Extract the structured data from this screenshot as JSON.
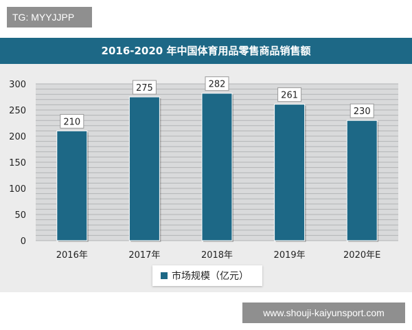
{
  "tag": "TG: MYYJJPP",
  "watermark": "www.shouji-kaiyunsport.com",
  "colors": {
    "bar": "#1d6886",
    "title_bar": "#1d6886"
  },
  "chart_data": {
    "type": "bar",
    "title": "2016-2020 年中国体育用品零售商品销售额",
    "categories": [
      "2016年",
      "2017年",
      "2018年",
      "2019年",
      "2020年E"
    ],
    "series": [
      {
        "name": "市场规模（亿元）",
        "values": [
          210,
          275,
          282,
          261,
          230
        ]
      }
    ],
    "ylim": [
      0,
      300
    ],
    "yticks": [
      0,
      50,
      100,
      150,
      200,
      250,
      300
    ],
    "grid": true,
    "legend": "bottom",
    "data_labels": true
  }
}
